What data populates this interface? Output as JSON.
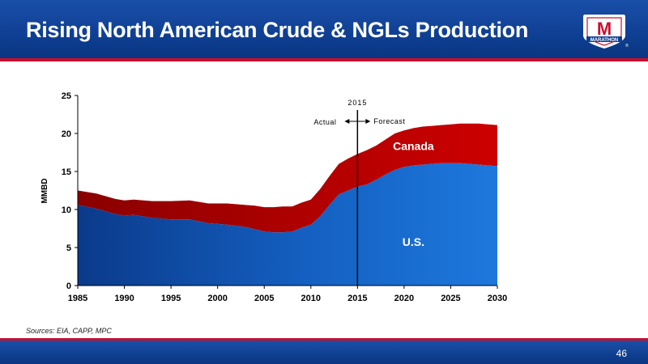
{
  "slide": {
    "title": "Rising North American Crude & NGLs Production",
    "sources": "Sources:  EIA, CAPP, MPC",
    "page_number": "46",
    "logo_text": "MARATHON",
    "logo_mark": "M",
    "logo_registered": "®"
  },
  "colors": {
    "header_blue": "#0f3f93",
    "accent_red": "#c8102e",
    "us_blue": "#1565c0",
    "canada_red": "#c00000"
  },
  "chart_data": {
    "type": "area",
    "stacked": true,
    "x": [
      1985,
      1987,
      1989,
      1990,
      1991,
      1993,
      1995,
      1997,
      1999,
      2001,
      2003,
      2004,
      2005,
      2006,
      2007,
      2008,
      2009,
      2010,
      2011,
      2012,
      2013,
      2014,
      2015,
      2016,
      2017,
      2018,
      2019,
      2020,
      2021,
      2022,
      2023,
      2024,
      2025,
      2026,
      2027,
      2028,
      2029,
      2030
    ],
    "series": [
      {
        "name": "U.S.",
        "label": "U.S.",
        "color": "#1565c0",
        "values": [
          10.6,
          10.1,
          9.4,
          9.2,
          9.3,
          8.9,
          8.7,
          8.7,
          8.2,
          8.0,
          7.7,
          7.4,
          7.1,
          7.0,
          7.0,
          7.1,
          7.6,
          8.0,
          9.1,
          10.6,
          12.0,
          12.5,
          13.0,
          13.3,
          13.9,
          14.6,
          15.2,
          15.6,
          15.8,
          15.9,
          16.0,
          16.1,
          16.1,
          16.1,
          16.0,
          15.9,
          15.8,
          15.7
        ]
      },
      {
        "name": "Canada",
        "label": "Canada",
        "color": "#c00000",
        "values": [
          1.9,
          2.0,
          2.0,
          2.0,
          2.0,
          2.2,
          2.4,
          2.5,
          2.6,
          2.8,
          2.9,
          3.1,
          3.2,
          3.3,
          3.4,
          3.3,
          3.3,
          3.3,
          3.6,
          3.8,
          4.0,
          4.2,
          4.3,
          4.5,
          4.5,
          4.6,
          4.8,
          4.8,
          4.9,
          5.0,
          5.0,
          5.0,
          5.1,
          5.2,
          5.3,
          5.4,
          5.4,
          5.4
        ]
      }
    ],
    "ylabel": "MMBD",
    "ylim": [
      0,
      25
    ],
    "yticks": [
      0,
      5,
      10,
      15,
      20,
      25
    ],
    "xlim": [
      1985,
      2030
    ],
    "xticks": [
      1985,
      1990,
      1995,
      2000,
      2005,
      2010,
      2015,
      2020,
      2025,
      2030
    ],
    "annotations": {
      "marker_x": 2015,
      "marker_label": "2015",
      "left_label": "Actual",
      "right_label": "Forecast"
    },
    "grid": false
  }
}
